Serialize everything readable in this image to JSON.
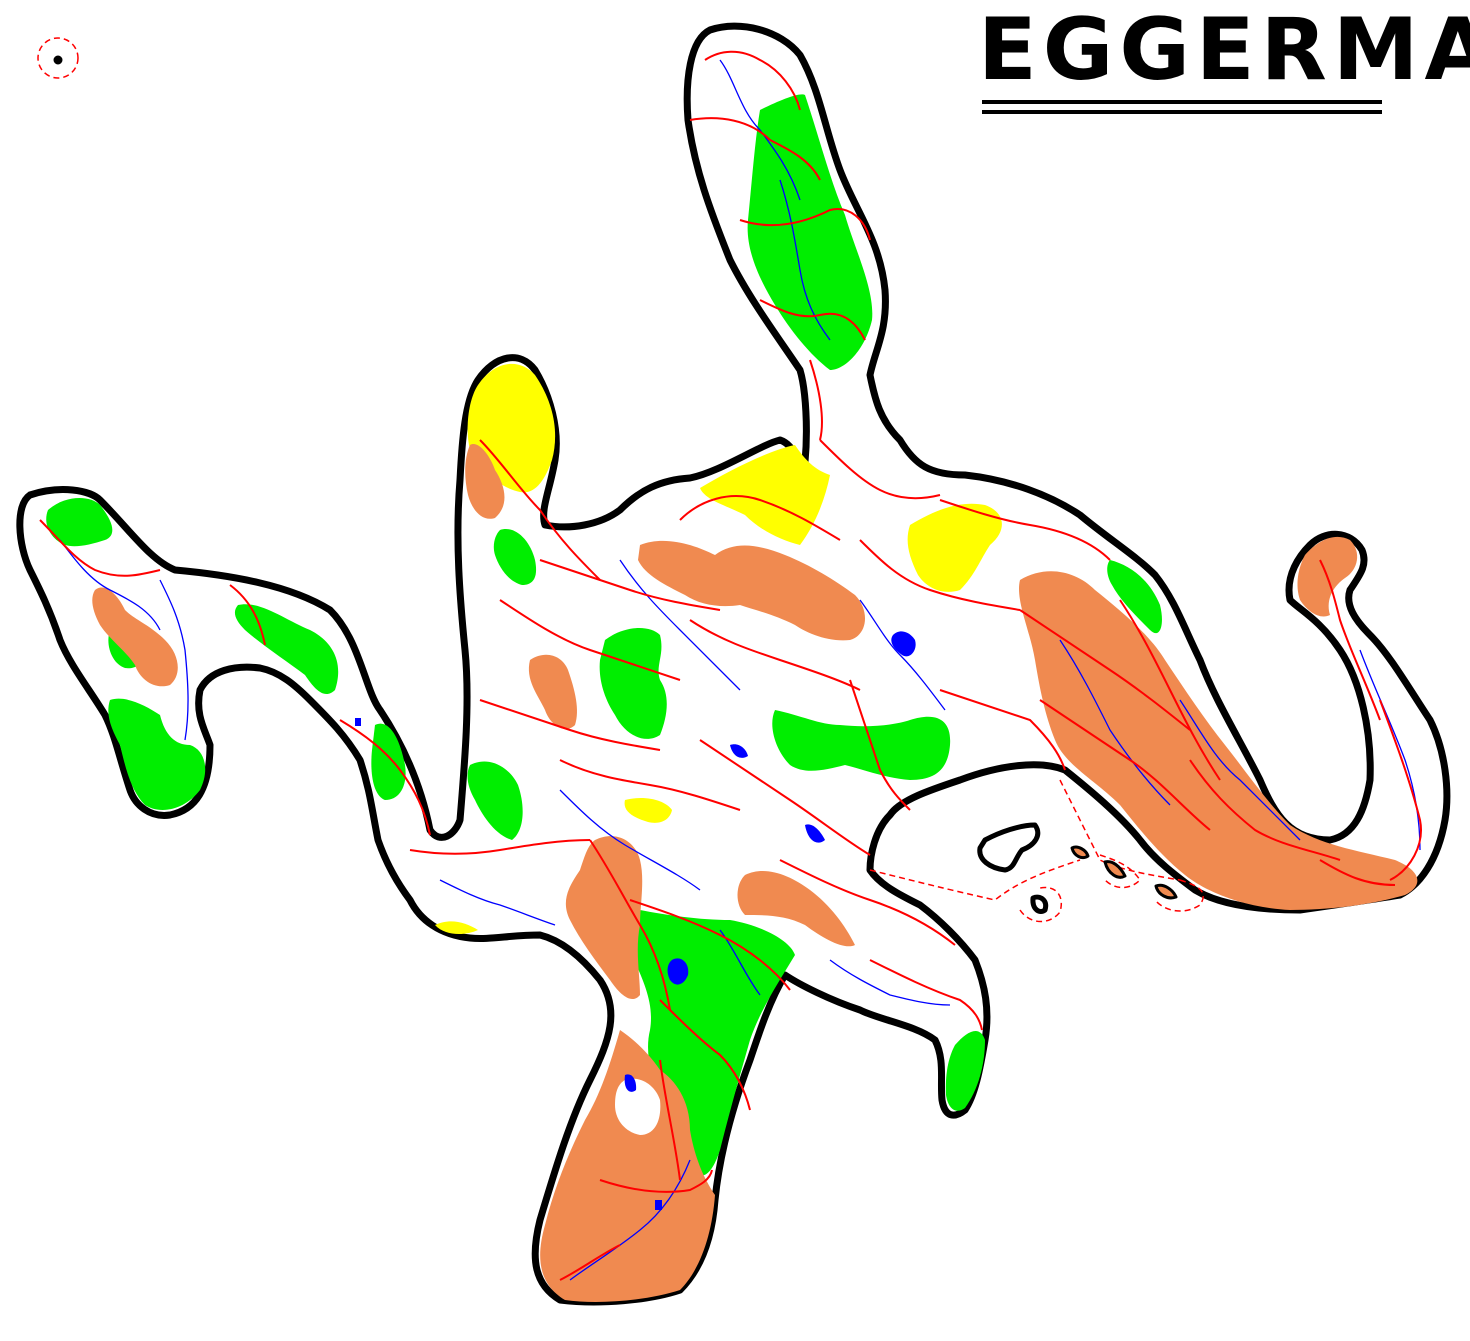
{
  "map": {
    "title": "EGGERMA",
    "colors": {
      "background": "#ffffff",
      "coast": "#000000",
      "forest": "#00ee00",
      "mountains": "#f08a50",
      "desert": "#ffff00",
      "roads": "#ff0000",
      "rivers": "#0000ff",
      "lakes": "#0000ff",
      "sea_routes": "#ff0000"
    },
    "layers": [
      "coastline",
      "forest",
      "mountains",
      "desert",
      "lakes",
      "rivers",
      "roads",
      "sea-routes",
      "islands"
    ]
  }
}
